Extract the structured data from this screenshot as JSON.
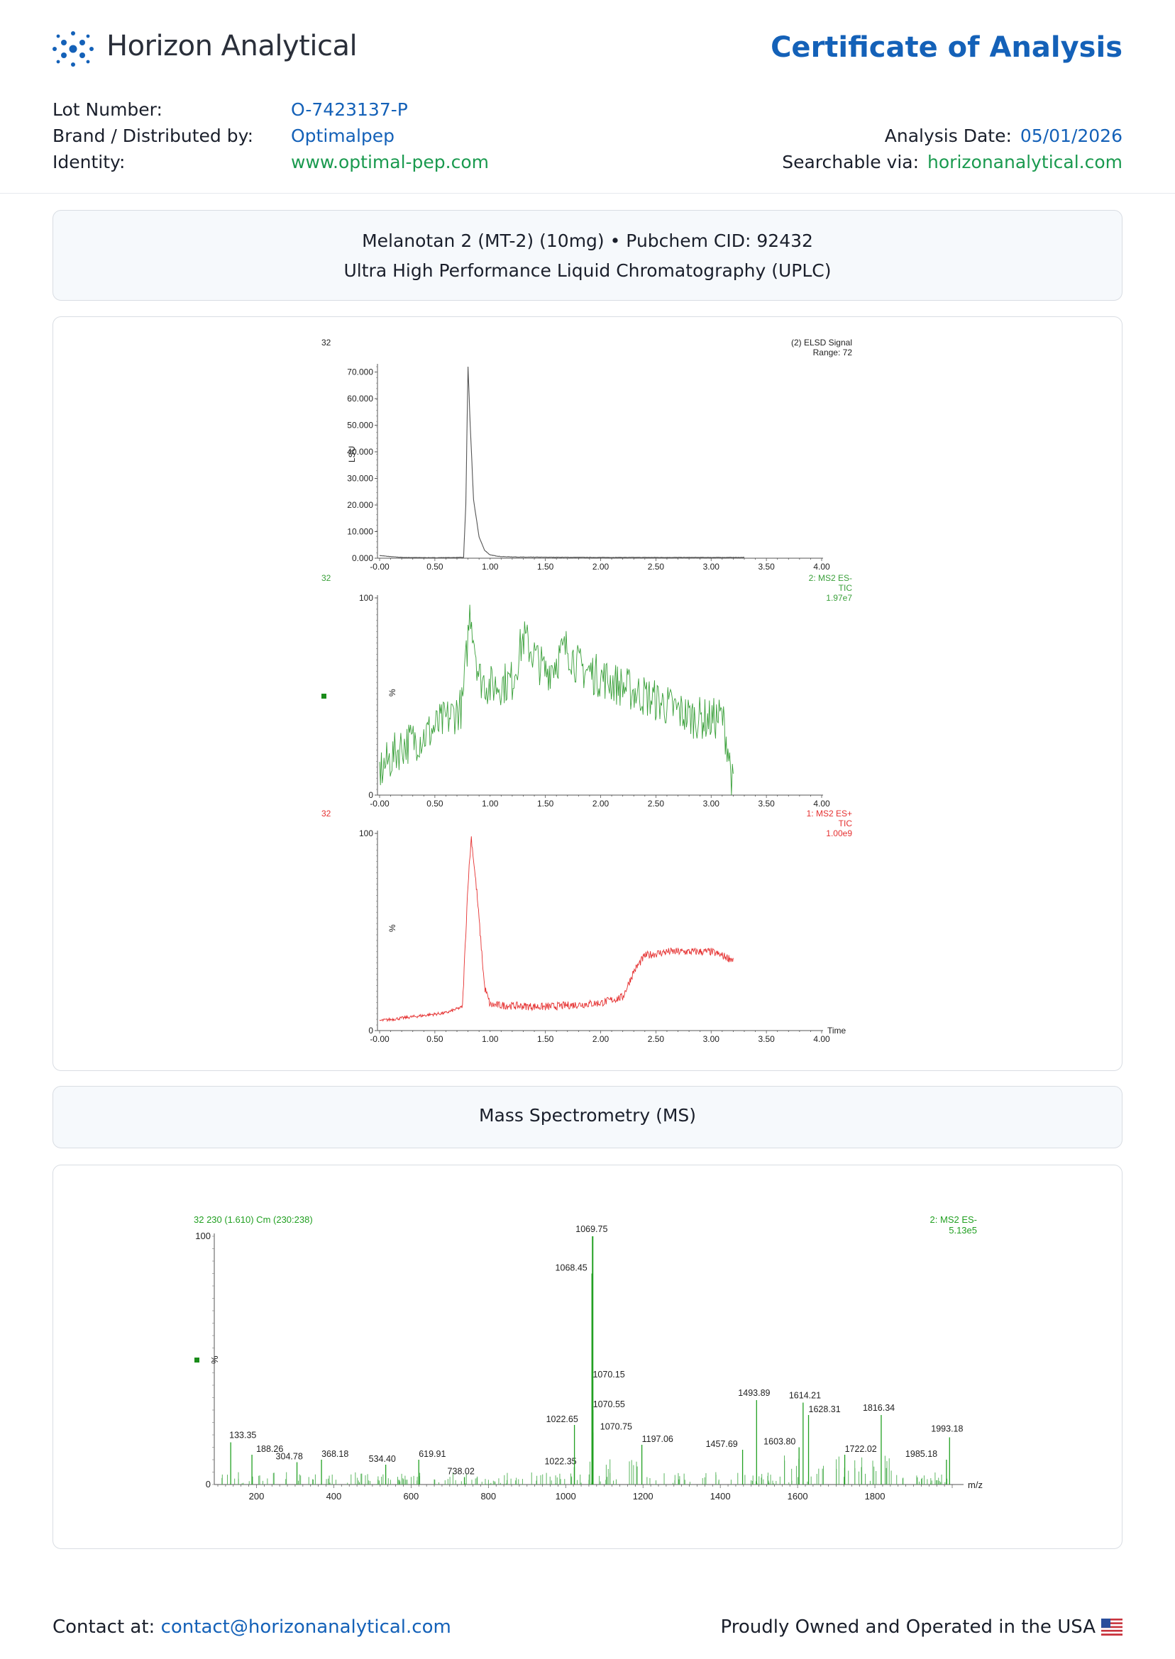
{
  "brand": {
    "name": "Horizon Analytical",
    "color": "#1461b8"
  },
  "document_title": "Certificate of Analysis",
  "info": {
    "lot_label": "Lot Number:",
    "lot_value": "O-7423137-P",
    "brand_label": "Brand / Distributed by:",
    "brand_value": "Optimalpep",
    "identity_label": "Identity:",
    "identity_value": "www.optimal-pep.com",
    "date_label": "Analysis Date:",
    "date_value": "05/01/2026",
    "search_label": "Searchable via:",
    "search_value": "horizonanalytical.com"
  },
  "section1": {
    "line1": "Melanotan 2 (MT-2) (10mg) • Pubchem CID: 92432",
    "line2": "Ultra High Performance Liquid Chromatography (UPLC)"
  },
  "section2": {
    "title": "Mass Spectrometry (MS)"
  },
  "footer": {
    "contact_label": "Contact at:",
    "contact_email": "contact@horizonanalytical.com",
    "tagline": "Proudly Owned and Operated in the USA",
    "flag_icon": "us-flag-icon"
  },
  "chart_data": [
    {
      "type": "line",
      "corner_label": "32",
      "legend": [
        "(2) ELSD Signal",
        "Range: 72"
      ],
      "ylabel": "LSU",
      "xlim": [
        0,
        4
      ],
      "ylim": [
        0,
        72
      ],
      "yticks": [
        "0.000",
        "10.000",
        "20.000",
        "30.000",
        "40.000",
        "50.000",
        "60.000",
        "70.000"
      ],
      "xticks": [
        "-0.00",
        "0.50",
        "1.00",
        "1.50",
        "2.00",
        "2.50",
        "3.00",
        "3.50",
        "4.00"
      ],
      "color": "#555555",
      "series": [
        {
          "x": [
            0.0,
            0.1,
            0.2,
            0.5,
            0.76,
            0.78,
            0.8,
            0.82,
            0.85,
            0.9,
            0.95,
            1.0,
            1.1,
            1.3,
            2.0,
            3.0,
            3.3
          ],
          "y": [
            1.0,
            0.6,
            0.3,
            0.2,
            0.3,
            20,
            72,
            50,
            22,
            8,
            3,
            1.2,
            0.6,
            0.4,
            0.3,
            0.3,
            0.3
          ]
        }
      ]
    },
    {
      "type": "line",
      "corner_label": "32",
      "legend": [
        "2: MS2 ES-",
        "TIC",
        "1.97e7"
      ],
      "ylabel": "%",
      "xlim": [
        0,
        4
      ],
      "ylim": [
        0,
        100
      ],
      "yticks": [
        "0",
        "100"
      ],
      "xticks": [
        "-0.00",
        "0.50",
        "1.00",
        "1.50",
        "2.00",
        "2.50",
        "3.00",
        "3.50",
        "4.00"
      ],
      "color": "#3aa03a",
      "series": [
        {
          "x": [
            0.0,
            0.2,
            0.4,
            0.6,
            0.75,
            0.82,
            0.9,
            1.0,
            1.2,
            1.3,
            1.5,
            1.7,
            1.8,
            2.0,
            2.2,
            2.5,
            2.8,
            3.0,
            3.1,
            3.15,
            3.2
          ],
          "y": [
            12,
            25,
            30,
            38,
            45,
            95,
            60,
            55,
            58,
            80,
            62,
            75,
            65,
            60,
            55,
            48,
            40,
            38,
            40,
            25,
            2
          ]
        }
      ]
    },
    {
      "type": "line",
      "corner_label": "32",
      "legend": [
        "1: MS2 ES+",
        "TIC",
        "1.00e9"
      ],
      "ylabel": "%",
      "xlabel": "Time",
      "xlim": [
        0,
        4
      ],
      "ylim": [
        0,
        100
      ],
      "yticks": [
        "0",
        "100"
      ],
      "xticks": [
        "-0.00",
        "0.50",
        "1.00",
        "1.50",
        "2.00",
        "2.50",
        "3.00",
        "3.50",
        "4.00"
      ],
      "color": "#e53030",
      "series": [
        {
          "x": [
            0.0,
            0.3,
            0.6,
            0.75,
            0.8,
            0.83,
            0.88,
            0.95,
            1.0,
            1.5,
            2.0,
            2.2,
            2.3,
            2.4,
            2.6,
            3.0,
            3.2
          ],
          "y": [
            5,
            7,
            9,
            12,
            75,
            98,
            70,
            22,
            13,
            12,
            14,
            17,
            30,
            38,
            40,
            40,
            36
          ]
        }
      ]
    },
    {
      "type": "bar",
      "corner_label": "32 230 (1.610) Cm (230:238)",
      "legend": [
        "2: MS2 ES-",
        "5.13e5"
      ],
      "ylabel": "%",
      "xlabel": "m/z",
      "xlim": [
        100,
        2000
      ],
      "ylim": [
        0,
        100
      ],
      "yticks": [
        "0",
        "100"
      ],
      "xticks": [
        "200",
        "400",
        "600",
        "800",
        "1000",
        "1200",
        "1400",
        "1600",
        "1800"
      ],
      "color": "#22a022",
      "peaks": [
        {
          "x": 133.35,
          "y": 17,
          "label": "133.35"
        },
        {
          "x": 188.26,
          "y": 12,
          "label": "188.26"
        },
        {
          "x": 304.78,
          "y": 9,
          "label": "304.78"
        },
        {
          "x": 368.18,
          "y": 10,
          "label": "368.18"
        },
        {
          "x": 534.4,
          "y": 8,
          "label": "534.40"
        },
        {
          "x": 619.91,
          "y": 10,
          "label": "619.91"
        },
        {
          "x": 738.02,
          "y": 3,
          "label": "738.02"
        },
        {
          "x": 1022.35,
          "y": 7,
          "label": "1022.35"
        },
        {
          "x": 1022.65,
          "y": 24,
          "label": "1022.65"
        },
        {
          "x": 1068.45,
          "y": 85,
          "label": "1068.45"
        },
        {
          "x": 1069.75,
          "y": 100,
          "label": "1069.75"
        },
        {
          "x": 1070.15,
          "y": 42,
          "label": "1070.15"
        },
        {
          "x": 1070.55,
          "y": 30,
          "label": "1070.55"
        },
        {
          "x": 1070.75,
          "y": 21,
          "label": "1070.75"
        },
        {
          "x": 1197.06,
          "y": 16,
          "label": "1197.06"
        },
        {
          "x": 1457.69,
          "y": 14,
          "label": "1457.69"
        },
        {
          "x": 1493.89,
          "y": 34,
          "label": "1493.89"
        },
        {
          "x": 1603.8,
          "y": 15,
          "label": "1603.80"
        },
        {
          "x": 1614.21,
          "y": 33,
          "label": "1614.21"
        },
        {
          "x": 1628.31,
          "y": 28,
          "label": "1628.31"
        },
        {
          "x": 1722.02,
          "y": 12,
          "label": "1722.02"
        },
        {
          "x": 1816.34,
          "y": 28,
          "label": "1816.34"
        },
        {
          "x": 1985.18,
          "y": 10,
          "label": "1985.18"
        },
        {
          "x": 1993.18,
          "y": 19,
          "label": "1993.18"
        }
      ]
    }
  ]
}
